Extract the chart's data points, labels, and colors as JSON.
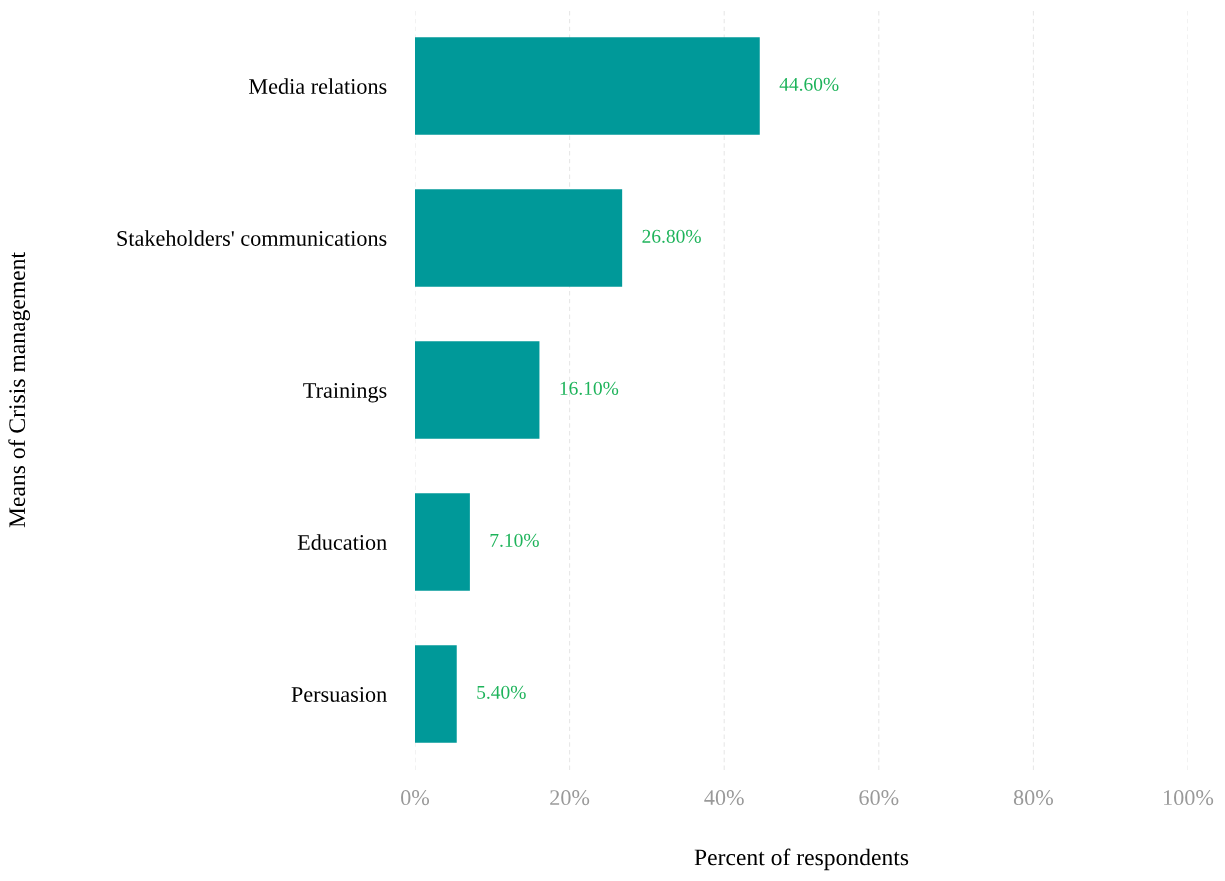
{
  "chart_data": {
    "type": "bar",
    "orientation": "horizontal",
    "categories": [
      "Media relations",
      "Stakeholders' communications",
      "Trainings",
      "Education",
      "Persuasion"
    ],
    "values": [
      44.6,
      26.8,
      16.1,
      7.1,
      5.4
    ],
    "value_labels": [
      "44.60%",
      "26.80%",
      "16.10%",
      "7.10%",
      "5.40%"
    ],
    "color": "#009999",
    "xlabel": "Percent of respondents",
    "ylabel": "Means of Crisis management",
    "xlim": [
      0,
      100
    ],
    "xticks": [
      {
        "value": 0,
        "label": "0%"
      },
      {
        "value": 20,
        "label": "20%"
      },
      {
        "value": 40,
        "label": "40%"
      },
      {
        "value": 60,
        "label": "60%"
      },
      {
        "value": 80,
        "label": "80%"
      },
      {
        "value": 100,
        "label": "100%"
      }
    ],
    "grid": "x"
  }
}
